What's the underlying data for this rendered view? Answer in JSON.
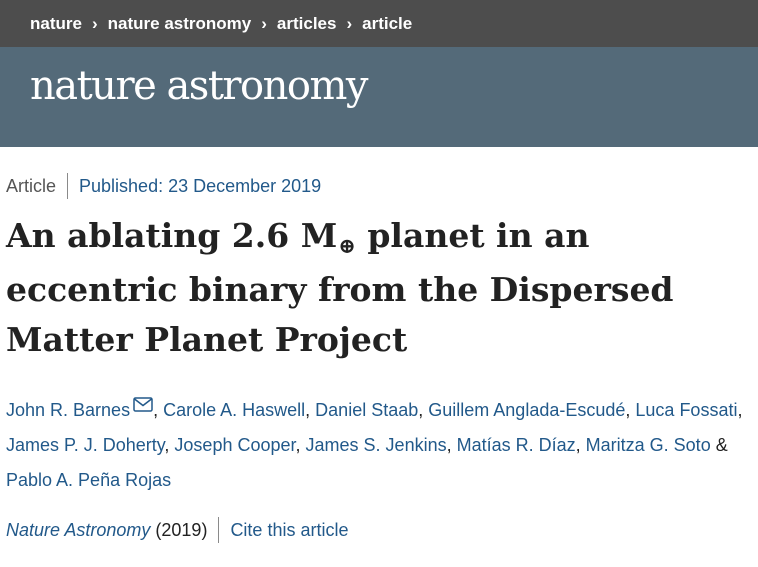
{
  "breadcrumb": [
    "nature",
    "nature astronomy",
    "articles",
    "article"
  ],
  "masthead": {
    "logo_text": "nature astronomy"
  },
  "meta": {
    "type": "Article",
    "published": "Published: 23 December 2019"
  },
  "title": {
    "part1": "An ablating 2.6 M",
    "symbol": "⊕",
    "part2": " planet in an eccentric binary from the Dispersed Matter Planet Project"
  },
  "authors": [
    "John R. Barnes",
    "Carole A. Haswell",
    "Daniel Staab",
    "Guillem Anglada-Escudé",
    "Luca Fossati",
    "James P. J. Doherty",
    "Joseph Cooper",
    "James S. Jenkins",
    "Matías R. Díaz",
    "Maritza G. Soto",
    "Pablo A. Peña Rojas"
  ],
  "citation": {
    "journal": "Nature Astronomy",
    "year": "(2019)",
    "cite_label": "Cite this article"
  },
  "colors": {
    "breadcrumb_bg": "#4d4d4d",
    "masthead_bg": "#546a79",
    "link": "#22598a"
  },
  "icons": {
    "mail": "envelope-icon"
  }
}
